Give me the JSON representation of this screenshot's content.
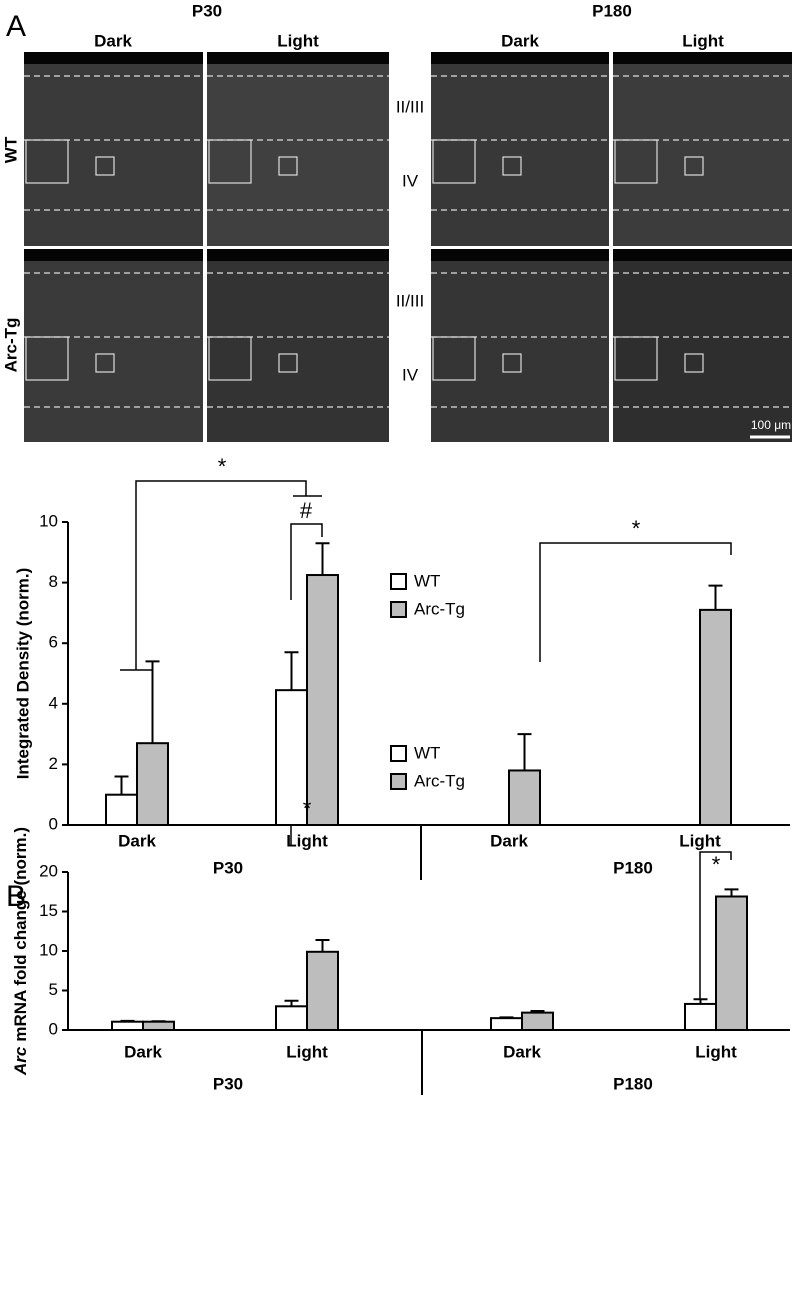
{
  "panel_labels": [
    "A",
    "B"
  ],
  "micrographs": {
    "ages": [
      "P30",
      "P180"
    ],
    "conditions": [
      "Dark",
      "Light",
      "Dark",
      "Light"
    ],
    "genotypes": [
      "WT",
      "Arc-Tg"
    ],
    "layers": [
      "II/III",
      "IV"
    ],
    "scale_bar": "100 μm"
  },
  "chart_data": [
    {
      "type": "bar",
      "ylabel": "Integrated Density (norm.)",
      "categories": [
        "Dark",
        "Light",
        "Dark",
        "Light"
      ],
      "groups": [
        "P30",
        "P180"
      ],
      "series": [
        {
          "name": "WT",
          "color": "#ffffff",
          "values": [
            1.0,
            4.45,
            null,
            null
          ],
          "errors": [
            0.6,
            1.25,
            null,
            null
          ]
        },
        {
          "name": "Arc-Tg",
          "color": "#bdbdbd",
          "values": [
            2.7,
            8.25,
            1.8,
            7.1
          ],
          "errors": [
            2.7,
            1.05,
            1.2,
            0.8
          ]
        }
      ],
      "ylim": [
        0,
        10
      ],
      "yticks": [
        0,
        2,
        4,
        6,
        8,
        10
      ],
      "annotations": [
        "*",
        "#",
        "*"
      ]
    },
    {
      "type": "bar",
      "ylabel": [
        "Arc",
        "mRNA fold change (norm.)"
      ],
      "categories": [
        "Dark",
        "Light",
        "Dark",
        "Light"
      ],
      "groups": [
        "P30",
        "P180"
      ],
      "series": [
        {
          "name": "WT",
          "color": "#ffffff",
          "values": [
            1.05,
            3.0,
            1.5,
            3.3
          ],
          "errors": [
            0.1,
            0.7,
            0.1,
            0.6
          ]
        },
        {
          "name": "Arc-Tg",
          "color": "#bdbdbd",
          "values": [
            1.05,
            9.9,
            2.2,
            16.9
          ],
          "errors": [
            0.05,
            1.5,
            0.2,
            0.9
          ]
        }
      ],
      "ylim": [
        0,
        20
      ],
      "yticks": [
        0,
        5,
        10,
        15,
        20
      ],
      "annotations": [
        "*",
        "*"
      ]
    }
  ]
}
